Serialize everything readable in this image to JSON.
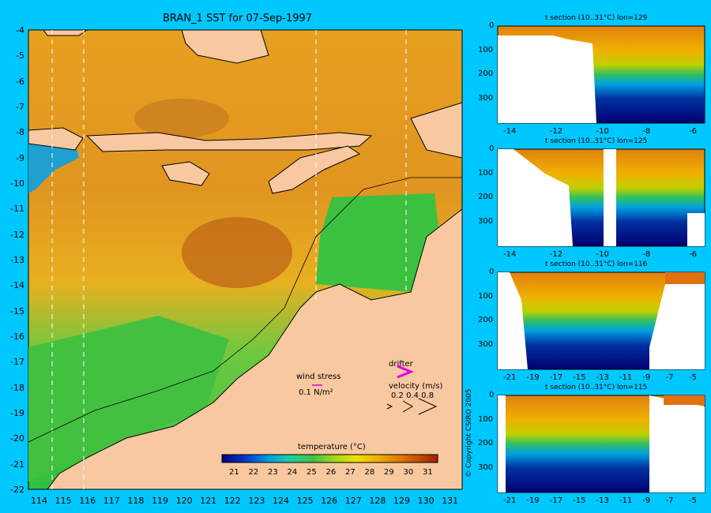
{
  "main_map": {
    "title": "BRAN_1 SST for 07-Sep-1997",
    "lat_ticks": [
      "-4",
      "-5",
      "-6",
      "-7",
      "-8",
      "-9",
      "-10",
      "-11",
      "-12",
      "-13",
      "-14",
      "-15",
      "-16",
      "-17",
      "-18",
      "-19",
      "-20",
      "-21",
      "-22"
    ],
    "lon_ticks": [
      "114",
      "115",
      "116",
      "117",
      "118",
      "119",
      "120",
      "121",
      "122",
      "123",
      "124",
      "125",
      "126",
      "127",
      "128",
      "129",
      "130",
      "131"
    ],
    "wind_stress_label": "wind stress",
    "wind_stress_value": "0.1 N/m²",
    "drifter_label": "drifter",
    "velocity_label": "velocity (m/s)",
    "velocity_values": "0.2 0.4 0.8",
    "colorbar": {
      "title": "temperature (°C)",
      "ticks": [
        "21",
        "22",
        "23",
        "24",
        "25",
        "26",
        "27",
        "28",
        "29",
        "30",
        "31"
      ],
      "colors": [
        "#000080",
        "#0018b0",
        "#0060e0",
        "#00b0e0",
        "#20d080",
        "#30c040",
        "#90d020",
        "#e8e000",
        "#f0b000",
        "#e08000",
        "#c05000",
        "#a02800"
      ]
    },
    "colors": {
      "land": "#f8c8a0",
      "background": "#00c8ff",
      "warm": "#e89a20",
      "cool": "#4cc040"
    }
  },
  "sections": [
    {
      "title": "t section (10..31°C) lon=129",
      "y_ticks": [
        "0",
        "100",
        "200",
        "300"
      ],
      "x_ticks": [
        "-14",
        "-12",
        "-10",
        "-8",
        "-6"
      ]
    },
    {
      "title": "t section (10..31°C) lon=125",
      "y_ticks": [
        "0",
        "100",
        "200",
        "300"
      ],
      "x_ticks": [
        "-14",
        "-12",
        "-10",
        "-8",
        "-6"
      ]
    },
    {
      "title": "t section (10..31°C) lon=116",
      "y_ticks": [
        "0",
        "100",
        "200",
        "300"
      ],
      "x_ticks": [
        "-21",
        "-19",
        "-17",
        "-15",
        "-13",
        "-11",
        "-9",
        "-7",
        "-5"
      ]
    },
    {
      "title": "t section (10..31°C) lon=115",
      "y_ticks": [
        "0",
        "100",
        "200",
        "300"
      ],
      "x_ticks": [
        "-21",
        "-19",
        "-17",
        "-15",
        "-13",
        "-11",
        "-9",
        "-7",
        "-5"
      ]
    }
  ],
  "copyright": "© Copyright CSIRO 2005"
}
